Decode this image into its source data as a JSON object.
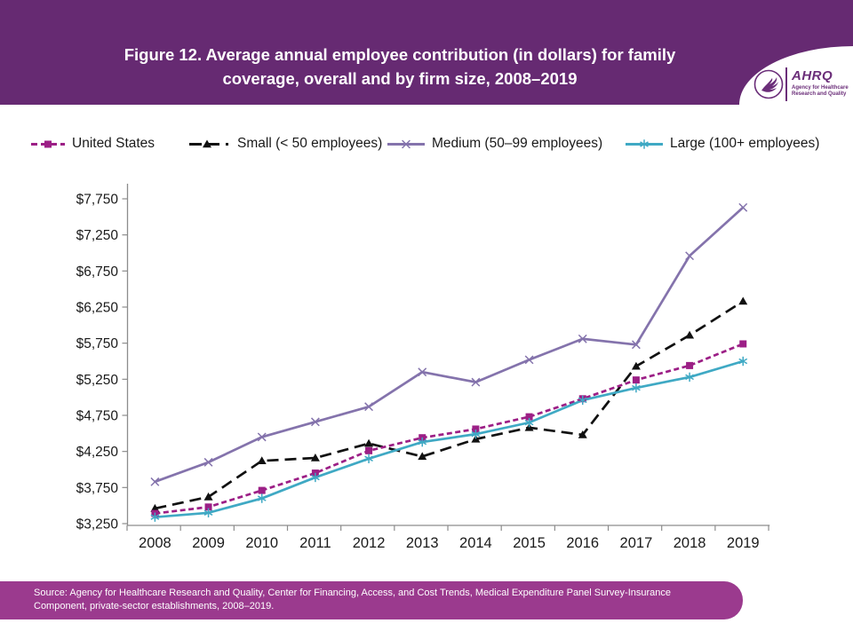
{
  "header": {
    "title_line1": "Figure 12. Average annual employee contribution (in dollars) for family",
    "title_line2": "coverage, overall and by firm size, 2008–2019",
    "logo": {
      "name": "AHRQ",
      "tagline_line1": "Agency for Healthcare",
      "tagline_line2": "Research and Quality"
    }
  },
  "legend": {
    "items": [
      {
        "label": "United States"
      },
      {
        "label": "Small (< 50 employees)"
      },
      {
        "label": "Medium (50–99 employees)"
      },
      {
        "label": "Large (100+ employees)"
      }
    ]
  },
  "chart_data": {
    "type": "line",
    "title": "Figure 12. Average annual employee contribution (in dollars) for family coverage, overall and by firm size, 2008–2019",
    "x": [
      2008,
      2009,
      2010,
      2011,
      2012,
      2013,
      2014,
      2015,
      2016,
      2017,
      2018,
      2019
    ],
    "series": [
      {
        "name": "United States",
        "color": "#9C1F86",
        "marker": "square",
        "dash": "6,3.5",
        "values": [
          3390,
          3480,
          3710,
          3950,
          4260,
          4440,
          4560,
          4730,
          4980,
          5240,
          5440,
          5740
        ]
      },
      {
        "name": "Small (< 50 employees)",
        "color": "#111111",
        "marker": "triangle",
        "dash": "13,7",
        "values": [
          3460,
          3620,
          4120,
          4160,
          4360,
          4180,
          4420,
          4580,
          4480,
          5430,
          5860,
          6330
        ]
      },
      {
        "name": "Medium (50–99 employees)",
        "color": "#8473AC",
        "marker": "x",
        "dash": null,
        "values": [
          3830,
          4100,
          4450,
          4660,
          4870,
          5350,
          5210,
          5520,
          5810,
          5730,
          6960,
          7630
        ]
      },
      {
        "name": "Large (100+ employees)",
        "color": "#3FA9C4",
        "marker": "asterisk",
        "dash": null,
        "values": [
          3340,
          3400,
          3600,
          3890,
          4150,
          4380,
          4490,
          4650,
          4960,
          5130,
          5280,
          5500
        ]
      }
    ],
    "ylim": [
      3250,
      7750
    ],
    "ytick_step": 500,
    "ytick_format": "$#,##0",
    "grid": false,
    "legend_position": "top"
  },
  "footer": {
    "source_line1": "Source: Agency for Healthcare Research and Quality, Center for Financing, Access, and Cost Trends, Medical Expenditure Panel Survey-Insurance",
    "source_line2": "Component, private-sector establishments, 2008–2019."
  },
  "colors": {
    "header_bg": "#662A72",
    "footer_bg": "#9B3A8E",
    "logo_purple": "#6B2E79",
    "axis_line": "#8C8C8C",
    "axis_text": "#1a1a1a"
  }
}
